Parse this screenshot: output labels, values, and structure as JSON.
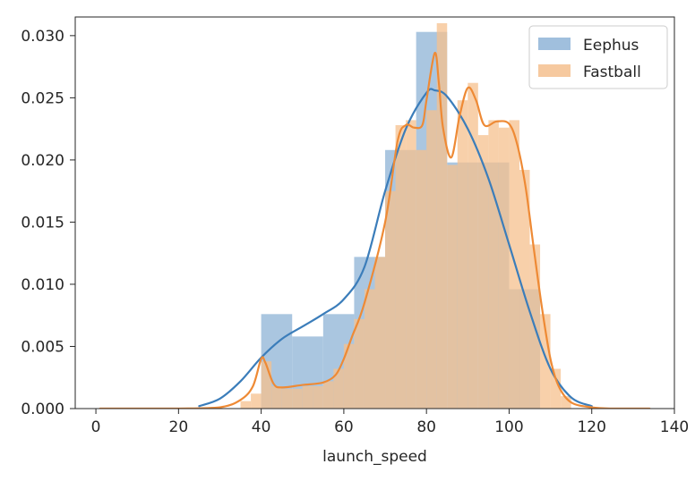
{
  "chart_data": {
    "type": "histogram_kde",
    "xlabel": "launch_speed",
    "ylabel": "",
    "xlim": [
      -5,
      140
    ],
    "ylim": [
      0,
      0.0315
    ],
    "x_ticks": [
      0,
      20,
      40,
      60,
      80,
      100,
      120,
      140
    ],
    "y_ticks": [
      0.0,
      0.005,
      0.01,
      0.015,
      0.02,
      0.025,
      0.03
    ],
    "y_tick_labels": [
      "0.000",
      "0.005",
      "0.010",
      "0.015",
      "0.020",
      "0.025",
      "0.030"
    ],
    "legend_position": "top-right",
    "series": [
      {
        "name": "Eephus",
        "hist_color": "#9bbcdb",
        "hist_opacity": 0.85,
        "line_color": "#3b7dba",
        "bins": [
          {
            "x0": 40.0,
            "x1": 47.5,
            "value": 0.0076
          },
          {
            "x0": 47.5,
            "x1": 55.0,
            "value": 0.0058
          },
          {
            "x0": 55.0,
            "x1": 62.5,
            "value": 0.0076
          },
          {
            "x0": 62.5,
            "x1": 70.0,
            "value": 0.0122
          },
          {
            "x0": 70.0,
            "x1": 77.5,
            "value": 0.0208
          },
          {
            "x0": 77.5,
            "x1": 85.0,
            "value": 0.0303
          },
          {
            "x0": 85.0,
            "x1": 92.5,
            "value": 0.0198
          },
          {
            "x0": 92.5,
            "x1": 100.0,
            "value": 0.0198
          },
          {
            "x0": 100.0,
            "x1": 107.5,
            "value": 0.0096
          }
        ],
        "kde": {
          "x": [
            25,
            30,
            35,
            40,
            45,
            50,
            55,
            60,
            65,
            70,
            75,
            80,
            82,
            85,
            90,
            95,
            100,
            105,
            110,
            115,
            120
          ],
          "y": [
            0.0002,
            0.0008,
            0.0022,
            0.0041,
            0.0056,
            0.0066,
            0.0076,
            0.0088,
            0.0114,
            0.0175,
            0.0225,
            0.0254,
            0.0256,
            0.0251,
            0.0225,
            0.0185,
            0.0132,
            0.0078,
            0.0032,
            0.0009,
            0.0002
          ]
        }
      },
      {
        "name": "Fastball",
        "hist_color": "#f5c08e",
        "hist_opacity": 0.75,
        "line_color": "#ee8a35",
        "bins": [
          {
            "x0": 35.0,
            "x1": 37.5,
            "value": 0.0006
          },
          {
            "x0": 37.5,
            "x1": 40.0,
            "value": 0.0012
          },
          {
            "x0": 40.0,
            "x1": 42.5,
            "value": 0.0038
          },
          {
            "x0": 42.5,
            "x1": 45.0,
            "value": 0.0018
          },
          {
            "x0": 45.0,
            "x1": 47.5,
            "value": 0.0016
          },
          {
            "x0": 47.5,
            "x1": 50.0,
            "value": 0.0016
          },
          {
            "x0": 50.0,
            "x1": 52.5,
            "value": 0.0018
          },
          {
            "x0": 52.5,
            "x1": 55.0,
            "value": 0.0018
          },
          {
            "x0": 55.0,
            "x1": 57.5,
            "value": 0.0022
          },
          {
            "x0": 57.5,
            "x1": 60.0,
            "value": 0.0032
          },
          {
            "x0": 60.0,
            "x1": 62.5,
            "value": 0.0052
          },
          {
            "x0": 62.5,
            "x1": 65.0,
            "value": 0.0072
          },
          {
            "x0": 65.0,
            "x1": 67.5,
            "value": 0.0096
          },
          {
            "x0": 67.5,
            "x1": 70.0,
            "value": 0.0122
          },
          {
            "x0": 70.0,
            "x1": 72.5,
            "value": 0.0175
          },
          {
            "x0": 72.5,
            "x1": 75.0,
            "value": 0.0228
          },
          {
            "x0": 75.0,
            "x1": 77.5,
            "value": 0.0232
          },
          {
            "x0": 77.5,
            "x1": 80.0,
            "value": 0.0208
          },
          {
            "x0": 80.0,
            "x1": 82.5,
            "value": 0.024
          },
          {
            "x0": 82.5,
            "x1": 85.0,
            "value": 0.031
          },
          {
            "x0": 85.0,
            "x1": 87.5,
            "value": 0.0196
          },
          {
            "x0": 87.5,
            "x1": 90.0,
            "value": 0.0248
          },
          {
            "x0": 90.0,
            "x1": 92.5,
            "value": 0.0262
          },
          {
            "x0": 92.5,
            "x1": 95.0,
            "value": 0.022
          },
          {
            "x0": 95.0,
            "x1": 97.5,
            "value": 0.0232
          },
          {
            "x0": 97.5,
            "x1": 100.0,
            "value": 0.0226
          },
          {
            "x0": 100.0,
            "x1": 102.5,
            "value": 0.0232
          },
          {
            "x0": 102.5,
            "x1": 105.0,
            "value": 0.0192
          },
          {
            "x0": 105.0,
            "x1": 107.5,
            "value": 0.0132
          },
          {
            "x0": 107.5,
            "x1": 110.0,
            "value": 0.0076
          },
          {
            "x0": 110.0,
            "x1": 112.5,
            "value": 0.0032
          },
          {
            "x0": 112.5,
            "x1": 115.0,
            "value": 0.001
          }
        ],
        "kde": {
          "x": [
            1,
            10,
            20,
            30,
            35,
            38,
            40,
            41,
            43,
            45,
            50,
            55,
            58,
            60,
            62,
            65,
            70,
            73,
            75,
            77,
            79,
            80,
            82,
            83,
            84,
            86,
            88,
            90,
            92,
            94,
            97,
            100,
            102,
            104,
            106,
            108,
            110,
            112,
            115,
            120,
            125,
            134
          ],
          "y": [
            0.0,
            0.0,
            0.0,
            0.0001,
            0.0007,
            0.0018,
            0.004,
            0.0037,
            0.002,
            0.0017,
            0.0019,
            0.0021,
            0.0027,
            0.004,
            0.0058,
            0.0085,
            0.015,
            0.0215,
            0.0228,
            0.0226,
            0.0228,
            0.0248,
            0.0286,
            0.0262,
            0.0226,
            0.0202,
            0.0235,
            0.0258,
            0.0248,
            0.0228,
            0.0231,
            0.0229,
            0.0212,
            0.0178,
            0.0128,
            0.008,
            0.004,
            0.0018,
            0.0005,
            0.0001,
            0.0,
            0.0
          ]
        }
      }
    ]
  }
}
